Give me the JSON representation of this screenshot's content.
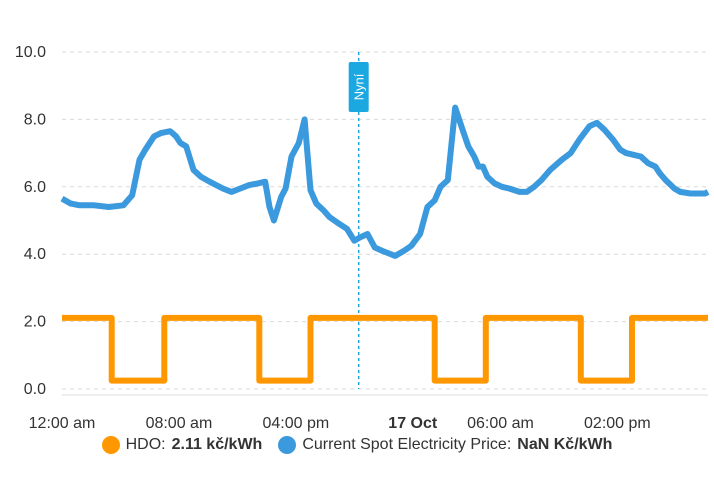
{
  "chart_data": {
    "type": "line",
    "x_ticks": [
      "12:00 am",
      "08:00 am",
      "04:00 pm",
      "17 Oct",
      "06:00 am",
      "02:00 pm"
    ],
    "x_tick_hours": [
      0,
      8,
      16,
      24,
      30,
      38
    ],
    "x_bold_ticks": [
      "17 Oct"
    ],
    "xlim_hours": [
      0,
      44.2
    ],
    "ylim": [
      0,
      10
    ],
    "y_ticks": [
      "0.0",
      "2.0",
      "4.0",
      "6.0",
      "8.0",
      "10.0"
    ],
    "y_tick_values": [
      0,
      2,
      4,
      6,
      8,
      10
    ],
    "grid": true,
    "legend_position": "bottom",
    "now_marker": {
      "label": "Nyní",
      "hour": 20.3,
      "color": "#1ba7e0"
    },
    "series": [
      {
        "name": "HDO",
        "legend_value": "2.11 kč/kWh",
        "color": "#ff9800",
        "step": true,
        "x": [
          0,
          3.4,
          3.4,
          7.0,
          7.0,
          13.5,
          13.5,
          17.0,
          17.0,
          25.5,
          25.5,
          29.0,
          29.0,
          35.5,
          35.5,
          39.0,
          39.0,
          44.2
        ],
        "y": [
          2.11,
          2.11,
          0.25,
          0.25,
          2.11,
          2.11,
          0.25,
          0.25,
          2.11,
          2.11,
          0.25,
          0.25,
          2.11,
          2.11,
          0.25,
          0.25,
          2.11,
          2.11
        ]
      },
      {
        "name": "Current Spot Electricity Price",
        "legend_value": "NaN Kč/kWh",
        "color": "#3b99dd",
        "step": false,
        "x": [
          0,
          0.6,
          1.2,
          2.2,
          3.2,
          4.2,
          4.8,
          5.3,
          5.7,
          6.3,
          6.8,
          7.4,
          7.8,
          8.1,
          8.5,
          9.0,
          9.5,
          10.1,
          11.0,
          11.6,
          12.2,
          12.8,
          13.4,
          13.9,
          14.2,
          14.5,
          15.0,
          15.3,
          15.7,
          16.2,
          16.6,
          17.0,
          17.4,
          17.9,
          18.3,
          18.8,
          19.5,
          20.0,
          20.4,
          20.9,
          21.4,
          21.9,
          22.2,
          22.8,
          23.4,
          23.9,
          24.5,
          25.0,
          25.5,
          25.9,
          26.4,
          26.9,
          27.4,
          27.8,
          28.2,
          28.5,
          28.8,
          29.1,
          29.6,
          30.1,
          30.6,
          31.3,
          31.8,
          32.3,
          32.8,
          33.4,
          34.2,
          34.8,
          35.4,
          36.1,
          36.6,
          37.1,
          37.7,
          38.2,
          38.6,
          39.1,
          39.6,
          40.1,
          40.6,
          40.9,
          41.3,
          41.9,
          42.3,
          43.0,
          43.4,
          43.7,
          44.0,
          44.2
        ],
        "y": [
          5.65,
          5.5,
          5.45,
          5.45,
          5.4,
          5.45,
          5.75,
          6.8,
          7.1,
          7.5,
          7.6,
          7.65,
          7.5,
          7.3,
          7.2,
          6.5,
          6.3,
          6.15,
          5.95,
          5.85,
          5.95,
          6.05,
          6.1,
          6.15,
          5.4,
          5.0,
          5.7,
          5.95,
          6.9,
          7.3,
          8.0,
          5.9,
          5.5,
          5.3,
          5.1,
          4.95,
          4.75,
          4.4,
          4.5,
          4.6,
          4.2,
          4.1,
          4.05,
          3.95,
          4.1,
          4.25,
          4.6,
          5.4,
          5.6,
          6.0,
          6.2,
          8.35,
          7.7,
          7.2,
          6.9,
          6.6,
          6.6,
          6.3,
          6.1,
          6.0,
          5.95,
          5.85,
          5.85,
          6.0,
          6.2,
          6.5,
          6.8,
          7.0,
          7.4,
          7.8,
          7.9,
          7.7,
          7.4,
          7.1,
          7.0,
          6.95,
          6.9,
          6.7,
          6.6,
          6.4,
          6.2,
          5.95,
          5.85,
          5.8,
          5.8,
          5.8,
          5.8,
          5.85
        ]
      }
    ]
  }
}
